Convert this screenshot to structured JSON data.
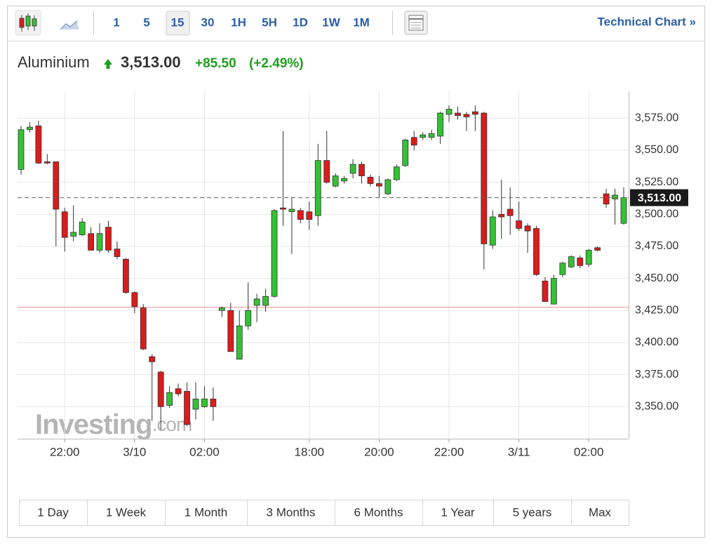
{
  "toolbar": {
    "intervals": [
      "1",
      "5",
      "15",
      "30",
      "1H",
      "5H",
      "1D",
      "1W",
      "1M"
    ],
    "active_interval": "15",
    "technical_link": "Technical Chart »"
  },
  "header": {
    "instrument": "Aluminium",
    "price": "3,513.00",
    "change": "+85.50",
    "change_percent": "(+2.49%)"
  },
  "chart_data": {
    "type": "candlestick",
    "categories": [
      null,
      null,
      null,
      null,
      null,
      "22:00",
      null,
      null,
      null,
      null,
      null,
      null,
      null,
      "3/10",
      null,
      null,
      null,
      null,
      null,
      null,
      null,
      "02:00",
      null,
      null,
      null,
      null,
      null,
      null,
      null,
      null,
      null,
      null,
      null,
      "18:00",
      null,
      null,
      null,
      null,
      null,
      null,
      null,
      "20:00",
      null,
      null,
      null,
      null,
      null,
      null,
      null,
      "22:00",
      null,
      null,
      null,
      null,
      null,
      null,
      null,
      "3/11",
      null,
      null,
      null,
      null,
      null,
      null,
      null,
      "02:00",
      null,
      null,
      null,
      null
    ],
    "open": [
      3535,
      3566,
      3569,
      3541,
      3541,
      3502,
      3483,
      3484,
      3485,
      3472,
      3490,
      3473,
      3465,
      3439,
      3427,
      3389,
      3377,
      3351,
      3364,
      3362,
      3348,
      3350,
      3356,
      3425,
      3425,
      3387,
      3413,
      3429,
      3429,
      3436,
      3505,
      3502,
      3503,
      3502,
      3499,
      3542,
      3522,
      3526,
      3532,
      3539,
      3529,
      3524,
      3516,
      3527,
      3538,
      3560,
      3560,
      3560,
      3561,
      3578,
      3579,
      3578,
      3580,
      3579,
      3476,
      3500,
      3504,
      3495,
      3491,
      3489,
      3448,
      3430,
      3453,
      3459,
      3466,
      3461,
      3474,
      3516,
      3512,
      3493
    ],
    "high": [
      3569,
      3572,
      3573,
      3547,
      3541,
      3505,
      3507,
      3497,
      3490,
      3493,
      3495,
      3479,
      3466,
      3440,
      3430,
      3391,
      3378,
      3366,
      3368,
      3369,
      3369,
      3366,
      3365,
      3428,
      3431,
      3425,
      3447,
      3438,
      3442,
      3504,
      3565,
      3513,
      3505,
      3510,
      3555,
      3565,
      3532,
      3530,
      3543,
      3541,
      3531,
      3530,
      3528,
      3539,
      3559,
      3565,
      3564,
      3566,
      3580,
      3585,
      3584,
      3580,
      3585,
      3580,
      3503,
      3527,
      3521,
      3510,
      3493,
      3491,
      3451,
      3453,
      3463,
      3468,
      3468,
      3473,
      3475,
      3520,
      3520,
      3521
    ],
    "low": [
      3531,
      3564,
      3539,
      3539,
      3475,
      3471,
      3479,
      3483,
      3472,
      3470,
      3470,
      3465,
      3438,
      3423,
      3394,
      3339,
      3332,
      3349,
      3358,
      3335,
      3340,
      3349,
      3339,
      3420,
      3393,
      3387,
      3410,
      3416,
      3424,
      3435,
      3491,
      3469,
      3493,
      3488,
      3491,
      3524,
      3521,
      3524,
      3528,
      3524,
      3522,
      3513,
      3515,
      3526,
      3537,
      3550,
      3558,
      3558,
      3555,
      3572,
      3574,
      3565,
      3565,
      3457,
      3473,
      3481,
      3484,
      3487,
      3470,
      3452,
      3432,
      3430,
      3451,
      3458,
      3458,
      3459,
      3471,
      3505,
      3492,
      3492
    ],
    "close": [
      3566,
      3568,
      3540,
      3540,
      3504,
      3482,
      3486,
      3494,
      3472,
      3485,
      3472,
      3467,
      3439,
      3428,
      3395,
      3385,
      3350,
      3361,
      3360,
      3336,
      3356,
      3356,
      3350,
      3427,
      3393,
      3413,
      3425,
      3434,
      3436,
      3503,
      3504,
      3504,
      3496,
      3496,
      3542,
      3525,
      3530,
      3528,
      3539,
      3530,
      3524,
      3522,
      3527,
      3537,
      3558,
      3554,
      3562,
      3563,
      3579,
      3582,
      3577,
      3576,
      3578,
      3477,
      3498,
      3498,
      3499,
      3489,
      3487,
      3453,
      3432,
      3450,
      3462,
      3467,
      3460,
      3472,
      3472,
      3508,
      3515,
      3513
    ],
    "up_color": "#33c233",
    "down_color": "#d91c1c",
    "ylim": [
      3325,
      3596
    ],
    "yticks": [
      {
        "value": 3350,
        "label": "3,350.00"
      },
      {
        "value": 3375,
        "label": "3,375.00"
      },
      {
        "value": 3400,
        "label": "3,400.00"
      },
      {
        "value": 3425,
        "label": "3,425.00"
      },
      {
        "value": 3450,
        "label": "3,450.00"
      },
      {
        "value": 3475,
        "label": "3,475.00"
      },
      {
        "value": 3500,
        "label": "3,500.00"
      },
      {
        "value": 3525,
        "label": "3,525.00"
      },
      {
        "value": 3550,
        "label": "3,550.00"
      },
      {
        "value": 3575,
        "label": "3,575.00"
      }
    ],
    "grid": true,
    "last_price": {
      "value": 3513,
      "label": "3,513.00"
    },
    "prev_close": 3427.5,
    "watermark": {
      "brand": "Investing",
      "suffix": ".com"
    }
  },
  "ranges": [
    "1 Day",
    "1 Week",
    "1 Month",
    "3 Months",
    "6 Months",
    "1 Year",
    "5 years",
    "Max"
  ]
}
